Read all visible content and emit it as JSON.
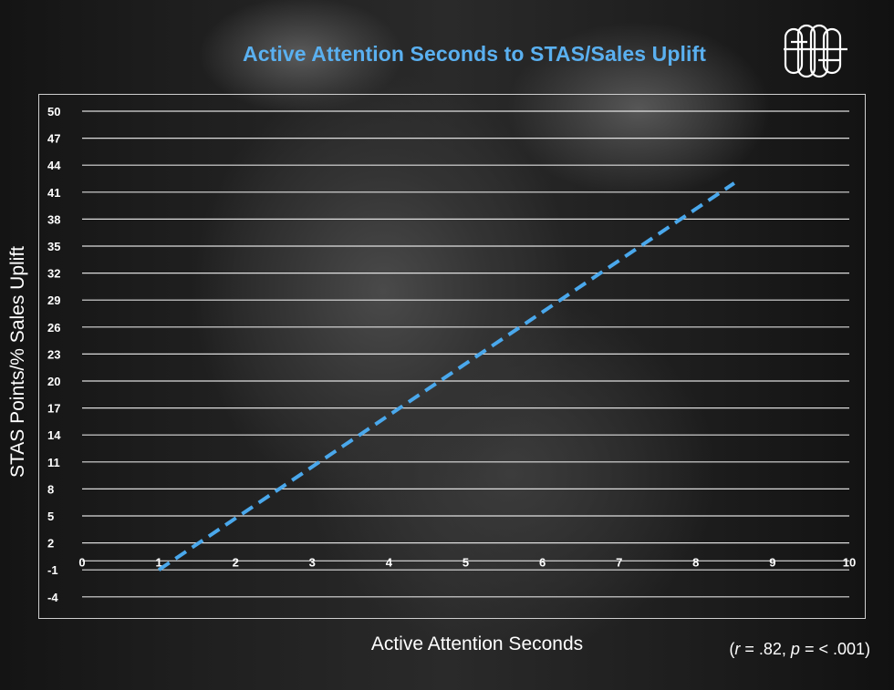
{
  "chart_data": {
    "type": "line",
    "title": "Active Attention Seconds to STAS/Sales Uplift",
    "xlabel": "Active Attention Seconds",
    "ylabel": "STAS Points/% Sales Uplift",
    "annotation": {
      "r_label": "r",
      "r_rest": " = .82, ",
      "p_label": "p",
      "p_rest": " = < .001)",
      "open": "("
    },
    "x_ticks": [
      "0",
      "1",
      "2",
      "3",
      "4",
      "5",
      "6",
      "7",
      "8",
      "9",
      "10"
    ],
    "y_ticks": [
      "50",
      "47",
      "44",
      "41",
      "38",
      "35",
      "32",
      "29",
      "26",
      "23",
      "20",
      "17",
      "14",
      "11",
      "8",
      "5",
      "2",
      "-1",
      "-4"
    ],
    "xlim": [
      0,
      10
    ],
    "ylim": [
      -4,
      50
    ],
    "grid": "horizontal",
    "series": [
      {
        "x": [
          1,
          8.5
        ],
        "y": [
          -1,
          42
        ],
        "style": "dashed",
        "color": "#4aa8ec"
      }
    ],
    "colors": {
      "title": "#5ab0f0",
      "trend": "#4aa8ec",
      "grid": "#ffffff"
    }
  }
}
